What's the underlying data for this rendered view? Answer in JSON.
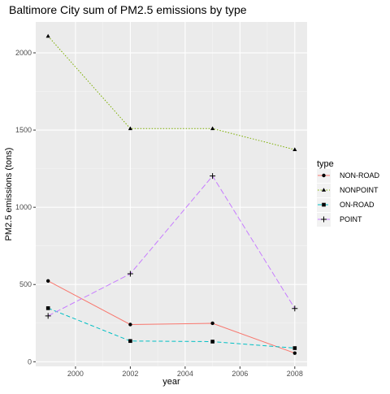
{
  "chart_data": {
    "type": "line",
    "title": "Baltimore City sum of PM2.5 emissions by type",
    "xlabel": "year",
    "ylabel": "PM2.5 emissions (tons)",
    "x": [
      1999,
      2002,
      2005,
      2008
    ],
    "xlim": [
      1998.55,
      2008.45
    ],
    "ylim": [
      -30,
      2200
    ],
    "xticks": [
      2000,
      2002,
      2004,
      2006,
      2008
    ],
    "xtick_labels": [
      "2000",
      "2002",
      "2004",
      "2006",
      "2008"
    ],
    "yticks": [
      0,
      500,
      1000,
      1500,
      2000
    ],
    "ytick_labels": [
      "0",
      "500",
      "1000",
      "1500",
      "2000"
    ],
    "grid": true,
    "background": "#ebebeb",
    "legend": {
      "title": "type",
      "placement": "right"
    },
    "series": [
      {
        "name": "NON-ROAD",
        "values": [
          522.94,
          240.85,
          248.93,
          55.82
        ],
        "color": "#f8766d",
        "marker": "circle",
        "linestyle": "solid"
      },
      {
        "name": "NONPOINT",
        "values": [
          2107.63,
          1509.5,
          1509.5,
          1373.21
        ],
        "color": "#7cae00",
        "marker": "triangle",
        "linestyle": "dotted"
      },
      {
        "name": "ON-ROAD",
        "values": [
          346.82,
          134.31,
          130.43,
          88.28
        ],
        "color": "#00bfc4",
        "marker": "square",
        "linestyle": "dashed"
      },
      {
        "name": "POINT",
        "values": [
          296.8,
          569.26,
          1202.49,
          344.98
        ],
        "color": "#c77cff",
        "marker": "plus",
        "linestyle": "longdash"
      }
    ]
  }
}
